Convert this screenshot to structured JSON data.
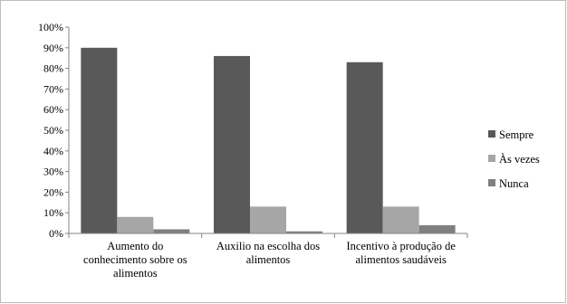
{
  "chart_data": {
    "type": "bar",
    "categories": [
      [
        "Aumento do",
        "conhecimento sobre os",
        "alimentos"
      ],
      [
        "Auxilio na escolha dos",
        "alimentos"
      ],
      [
        "Incentivo à produção de",
        "alimentos saudáveis"
      ]
    ],
    "series": [
      {
        "name": "Sempre",
        "values": [
          90,
          86,
          83
        ],
        "color": "#595959"
      },
      {
        "name": "Às vezes",
        "values": [
          8,
          13,
          13
        ],
        "color": "#a6a6a6"
      },
      {
        "name": "Nunca",
        "values": [
          2,
          1,
          4
        ],
        "color": "#7f7f7f"
      }
    ],
    "y_ticks": [
      "0%",
      "10%",
      "20%",
      "30%",
      "40%",
      "50%",
      "60%",
      "70%",
      "80%",
      "90%",
      "100%"
    ],
    "ylim": [
      0,
      100
    ],
    "legend_position": "right",
    "grid": false
  }
}
